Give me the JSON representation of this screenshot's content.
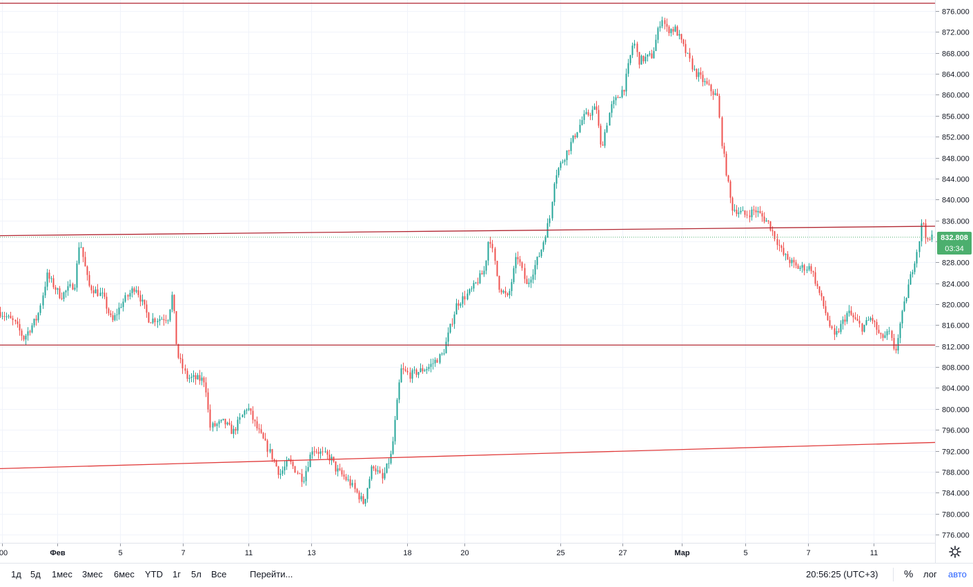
{
  "chart_data": {
    "type": "candlestick",
    "symbol_last_price": "832.808",
    "countdown": "03:34",
    "y_axis": {
      "min": 774,
      "max": 878,
      "ticks": [
        "776.000",
        "780.000",
        "784.000",
        "788.000",
        "792.000",
        "796.000",
        "800.000",
        "804.000",
        "808.000",
        "812.000",
        "816.000",
        "820.000",
        "824.000",
        "828.000",
        "832.000",
        "836.000",
        "840.000",
        "844.000",
        "848.000",
        "852.000",
        "856.000",
        "860.000",
        "864.000",
        "868.000",
        "872.000",
        "876.000"
      ]
    },
    "x_axis": {
      "ticks": [
        {
          "label": ":00",
          "bold": false
        },
        {
          "label": "Фев",
          "bold": true
        },
        {
          "label": "5",
          "bold": false
        },
        {
          "label": "7",
          "bold": false
        },
        {
          "label": "11",
          "bold": false
        },
        {
          "label": "13",
          "bold": false
        },
        {
          "label": "18",
          "bold": false
        },
        {
          "label": "20",
          "bold": false
        },
        {
          "label": "25",
          "bold": false
        },
        {
          "label": "27",
          "bold": false
        },
        {
          "label": "Мар",
          "bold": true
        },
        {
          "label": "5",
          "bold": false
        },
        {
          "label": "7",
          "bold": false
        },
        {
          "label": "11",
          "bold": false
        }
      ]
    },
    "price_path": [
      [
        0.0,
        818.5
      ],
      [
        0.015,
        816.5
      ],
      [
        0.025,
        813.5
      ],
      [
        0.04,
        817.5
      ],
      [
        0.05,
        825.5
      ],
      [
        0.065,
        821.5
      ],
      [
        0.08,
        824.0
      ],
      [
        0.085,
        832.5
      ],
      [
        0.095,
        823.5
      ],
      [
        0.11,
        821.5
      ],
      [
        0.12,
        816.5
      ],
      [
        0.13,
        820.0
      ],
      [
        0.145,
        823.5
      ],
      [
        0.16,
        817.0
      ],
      [
        0.18,
        817.5
      ],
      [
        0.185,
        822.0
      ],
      [
        0.19,
        810.5
      ],
      [
        0.2,
        806.0
      ],
      [
        0.22,
        805.5
      ],
      [
        0.225,
        796.5
      ],
      [
        0.24,
        797.5
      ],
      [
        0.25,
        795.5
      ],
      [
        0.265,
        800.5
      ],
      [
        0.275,
        796.5
      ],
      [
        0.29,
        791.5
      ],
      [
        0.3,
        787.5
      ],
      [
        0.31,
        790.0
      ],
      [
        0.325,
        786.5
      ],
      [
        0.335,
        792.5
      ],
      [
        0.355,
        790.5
      ],
      [
        0.36,
        788.5
      ],
      [
        0.375,
        786.0
      ],
      [
        0.39,
        782.0
      ],
      [
        0.4,
        789.5
      ],
      [
        0.41,
        786.5
      ],
      [
        0.42,
        791.5
      ],
      [
        0.43,
        807.5
      ],
      [
        0.44,
        806.5
      ],
      [
        0.46,
        808.0
      ],
      [
        0.475,
        810.5
      ],
      [
        0.49,
        820.0
      ],
      [
        0.505,
        822.5
      ],
      [
        0.52,
        826.5
      ],
      [
        0.525,
        833.5
      ],
      [
        0.535,
        823.5
      ],
      [
        0.545,
        821.0
      ],
      [
        0.555,
        829.5
      ],
      [
        0.565,
        823.5
      ],
      [
        0.58,
        830.0
      ],
      [
        0.59,
        836.5
      ],
      [
        0.595,
        844.5
      ],
      [
        0.605,
        848.0
      ],
      [
        0.615,
        851.5
      ],
      [
        0.625,
        855.5
      ],
      [
        0.64,
        857.5
      ],
      [
        0.645,
        849.5
      ],
      [
        0.655,
        857.5
      ],
      [
        0.67,
        861.5
      ],
      [
        0.68,
        870.5
      ],
      [
        0.685,
        866.5
      ],
      [
        0.7,
        867.5
      ],
      [
        0.71,
        875.0
      ],
      [
        0.715,
        872.5
      ],
      [
        0.725,
        872.5
      ],
      [
        0.735,
        868.5
      ],
      [
        0.745,
        864.5
      ],
      [
        0.755,
        862.5
      ],
      [
        0.77,
        859.5
      ],
      [
        0.775,
        850.0
      ],
      [
        0.785,
        838.5
      ],
      [
        0.8,
        837.0
      ],
      [
        0.81,
        838.0
      ],
      [
        0.825,
        835.5
      ],
      [
        0.84,
        829.5
      ],
      [
        0.855,
        827.0
      ],
      [
        0.87,
        827.0
      ],
      [
        0.885,
        819.0
      ],
      [
        0.895,
        813.5
      ],
      [
        0.91,
        818.5
      ],
      [
        0.925,
        815.5
      ],
      [
        0.935,
        817.5
      ],
      [
        0.945,
        813.5
      ],
      [
        0.955,
        814.5
      ],
      [
        0.96,
        810.0
      ],
      [
        0.965,
        815.5
      ],
      [
        0.975,
        823.5
      ],
      [
        0.985,
        831.0
      ],
      [
        0.99,
        836.5
      ],
      [
        0.995,
        831.5
      ],
      [
        1.0,
        832.8
      ]
    ],
    "horizontal_lines": [
      {
        "value": 877.5,
        "color": "#b22833"
      },
      {
        "value": 812.2,
        "color": "#b22833"
      }
    ],
    "trend_lines": [
      {
        "from": 833.1,
        "to": 834.9,
        "color": "#b22833"
      },
      {
        "from": 788.6,
        "to": 793.6,
        "color": "#e03a3a"
      }
    ],
    "colors": {
      "up": "#26a69a",
      "down": "#ef5350",
      "last_price": "#4caf6e",
      "grid": "#f0f3fa"
    }
  },
  "bottom_bar": {
    "ranges": [
      "1д",
      "5д",
      "1мес",
      "3мес",
      "6мес",
      "YTD",
      "1г",
      "5л",
      "Все"
    ],
    "goto": "Перейти...",
    "clock": "20:56:25 (UTC+3)",
    "percent": "%",
    "log": "лог",
    "auto": "авто"
  },
  "icons": {
    "settings": "gear-icon"
  }
}
